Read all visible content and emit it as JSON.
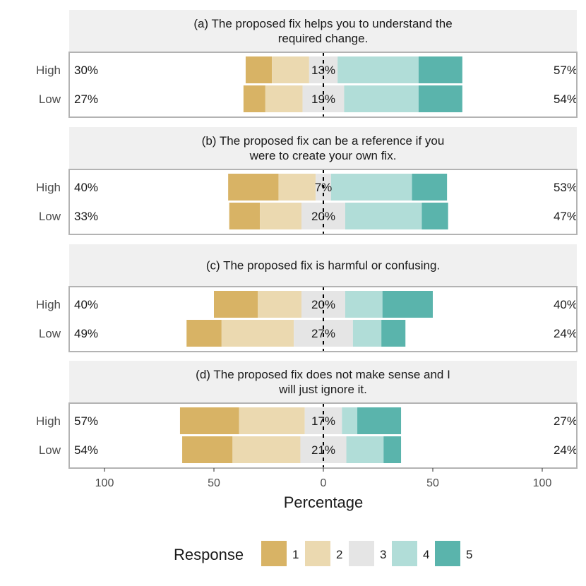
{
  "chart_data": {
    "type": "bar",
    "subtype": "diverging-stacked-likert",
    "xlabel": "Percentage",
    "xlim": [
      -115,
      115
    ],
    "x_ticks": [
      -100,
      -50,
      0,
      50,
      100
    ],
    "x_tick_labels": [
      "100",
      "50",
      "0",
      "50",
      "100"
    ],
    "colors": [
      "#d8b365",
      "#ebd9b0",
      "#e5e5e5",
      "#b1ddd8",
      "#5ab4ac"
    ],
    "legend": {
      "title": "Response",
      "position": "bottom",
      "items": [
        "1",
        "2",
        "3",
        "4",
        "5"
      ]
    },
    "panels": [
      {
        "title": [
          "(a) The proposed fix helps you to understand the",
          "required change."
        ],
        "rows": [
          {
            "label": "High",
            "values": [
              12,
              17,
              13,
              37,
              20
            ],
            "left": "30%",
            "center": "13%",
            "right": "57%"
          },
          {
            "label": "Low",
            "values": [
              10,
              17,
              19,
              34,
              20
            ],
            "left": "27%",
            "center": "19%",
            "right": "54%"
          }
        ]
      },
      {
        "title": [
          "(b) The proposed fix can be a reference if you",
          "were to create your own fix."
        ],
        "rows": [
          {
            "label": "High",
            "values": [
              23,
              17,
              7,
              37,
              16
            ],
            "left": "40%",
            "center": "7%",
            "right": "53%"
          },
          {
            "label": "Low",
            "values": [
              14,
              19,
              20,
              35,
              12
            ],
            "left": "33%",
            "center": "20%",
            "right": "47%"
          }
        ]
      },
      {
        "title": [
          "(c) The proposed fix is harmful or confusing."
        ],
        "rows": [
          {
            "label": "High",
            "values": [
              20,
              20,
              20,
              17,
              23
            ],
            "left": "40%",
            "center": "20%",
            "right": "40%"
          },
          {
            "label": "Low",
            "values": [
              16,
              33,
              27,
              13,
              11
            ],
            "left": "49%",
            "center": "27%",
            "right": "24%"
          }
        ]
      },
      {
        "title": [
          "(d) The proposed fix does not make sense and I",
          "will just ignore it."
        ],
        "rows": [
          {
            "label": "High",
            "values": [
              27,
              30,
              17,
              7,
              20
            ],
            "left": "57%",
            "center": "17%",
            "right": "27%"
          },
          {
            "label": "Low",
            "values": [
              23,
              31,
              21,
              17,
              8
            ],
            "left": "54%",
            "center": "21%",
            "right": "24%"
          }
        ]
      }
    ]
  }
}
